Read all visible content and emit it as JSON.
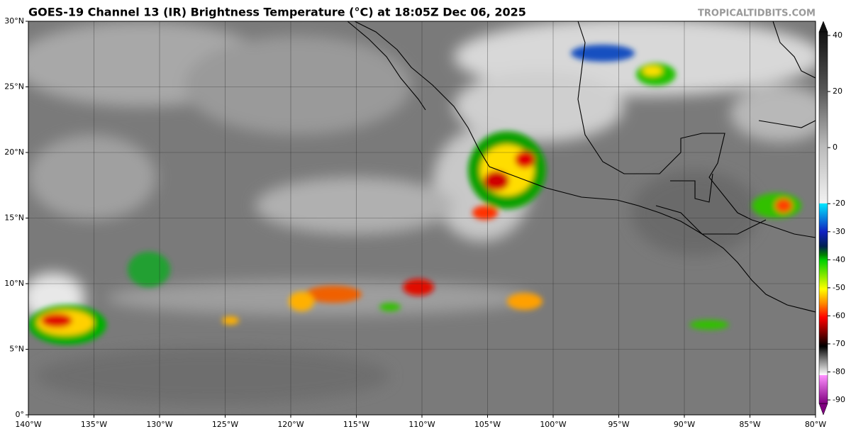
{
  "header": {
    "title": "GOES-19 Channel 13 (IR) Brightness Temperature (°C) at 18:05Z Dec 06, 2025",
    "credit": "TROPICALTIDBITS.COM"
  },
  "map": {
    "xlim": [
      -140,
      -80
    ],
    "ylim": [
      0,
      30
    ],
    "lon_ticks": [
      {
        "value": -140,
        "label": "140°W"
      },
      {
        "value": -135,
        "label": "135°W"
      },
      {
        "value": -130,
        "label": "130°W"
      },
      {
        "value": -125,
        "label": "125°W"
      },
      {
        "value": -120,
        "label": "120°W"
      },
      {
        "value": -115,
        "label": "115°W"
      },
      {
        "value": -110,
        "label": "110°W"
      },
      {
        "value": -105,
        "label": "105°W"
      },
      {
        "value": -100,
        "label": "100°W"
      },
      {
        "value": -95,
        "label": "95°W"
      },
      {
        "value": -90,
        "label": "90°W"
      },
      {
        "value": -85,
        "label": "85°W"
      },
      {
        "value": -80,
        "label": "80°W"
      }
    ],
    "lat_ticks": [
      {
        "value": 0,
        "label": "0°"
      },
      {
        "value": 5,
        "label": "5°N"
      },
      {
        "value": 10,
        "label": "10°N"
      },
      {
        "value": 15,
        "label": "15°N"
      },
      {
        "value": 20,
        "label": "20°N"
      },
      {
        "value": 25,
        "label": "25°N"
      },
      {
        "value": 30,
        "label": "30°N"
      }
    ]
  },
  "colorbar": {
    "range": [
      -90,
      40
    ],
    "ticks": [
      40,
      20,
      0,
      -20,
      -30,
      -40,
      -50,
      -60,
      -70,
      -80,
      -90
    ]
  }
}
